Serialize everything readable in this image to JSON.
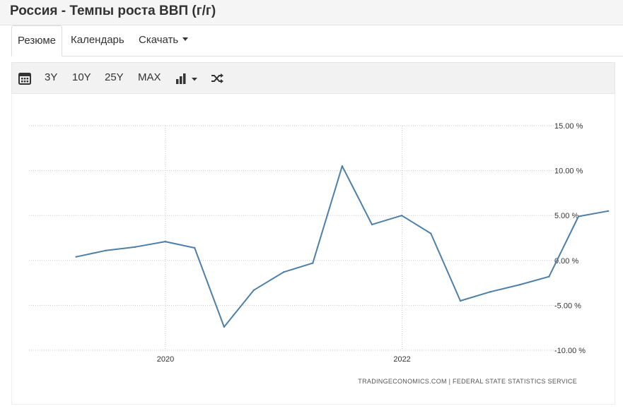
{
  "page": {
    "title": "Россия - Темпы роста ВВП (г/г)"
  },
  "tabs": [
    {
      "label": "Резюме",
      "active": true
    },
    {
      "label": "Календарь",
      "active": false
    },
    {
      "label": "Скачать",
      "active": false,
      "dropdown": true
    }
  ],
  "toolbar": {
    "calendar_icon": "calendar-icon",
    "ranges": [
      "3Y",
      "10Y",
      "25Y",
      "MAX"
    ],
    "chart_type_icon": "bar-chart-icon",
    "shuffle_icon": "shuffle-icon"
  },
  "colors": {
    "line": "#4d7fa8",
    "grid": "#c8c8c8",
    "text": "#333333",
    "source": "#555555"
  },
  "chart_data": {
    "type": "line",
    "title": "",
    "xlabel": "",
    "ylabel": "",
    "ylim": [
      -10,
      15
    ],
    "yticks": [
      15,
      10,
      5,
      0,
      -5,
      -10
    ],
    "ytick_labels": [
      "15.00 %",
      "10.00 %",
      "5.00 %",
      "0.00 %",
      "-5.00 %",
      "-10.00 %"
    ],
    "xlim": [
      "2019-01-01",
      "2023-06-30"
    ],
    "xtick_labels": [
      {
        "date": "2020-01-01",
        "label": "2020"
      },
      {
        "date": "2022-01-01",
        "label": "2022"
      }
    ],
    "grid": true,
    "series": [
      {
        "x": [
          "2019-03-31",
          "2019-06-30",
          "2019-09-30",
          "2019-12-31",
          "2020-03-31",
          "2020-06-30",
          "2020-09-30",
          "2020-12-31",
          "2021-03-31",
          "2021-06-30",
          "2021-09-30",
          "2021-12-31",
          "2022-03-31",
          "2022-06-30",
          "2022-09-30",
          "2022-12-31",
          "2023-03-31",
          "2023-06-30",
          "2023-09-30"
        ],
        "values": [
          0.4,
          1.1,
          1.5,
          2.1,
          1.4,
          -7.4,
          -3.3,
          -1.3,
          -0.3,
          10.5,
          4.0,
          5.0,
          3.0,
          -4.5,
          -3.5,
          -2.7,
          -1.8,
          4.9,
          5.5
        ]
      }
    ],
    "source": "TRADINGECONOMICS.COM  |  FEDERAL  STATE  STATISTICS  SERVICE"
  }
}
